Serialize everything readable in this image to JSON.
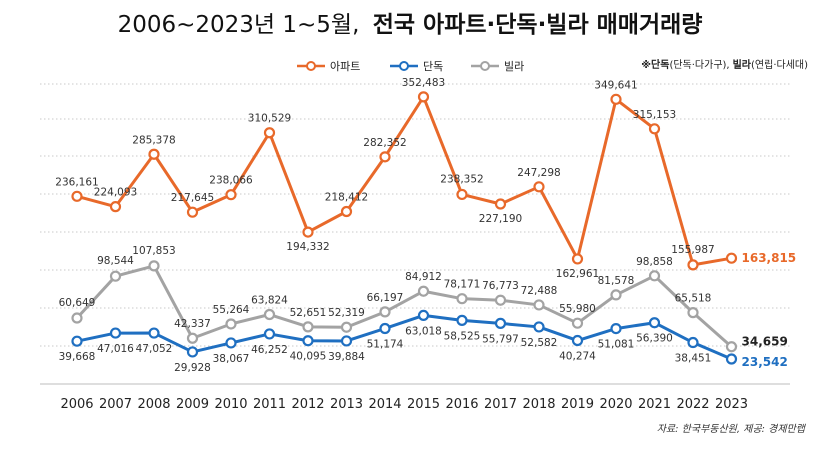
{
  "chart_data": {
    "type": "line",
    "title": "2006~2023년 1~5월, 전국 아파트·단독·빌라 매매거래량",
    "title_parts": {
      "regular": "2006~2023년 1~5월,",
      "bold": "전국 아파트·단독·빌라 매매거래량"
    },
    "x": [
      "2006",
      "2007",
      "2008",
      "2009",
      "2010",
      "2011",
      "2012",
      "2013",
      "2014",
      "2015",
      "2016",
      "2017",
      "2018",
      "2019",
      "2020",
      "2021",
      "2022",
      "2023"
    ],
    "series": [
      {
        "name": "아파트",
        "color": "#e8692a",
        "values": [
          236161,
          224093,
          285378,
          217645,
          238066,
          310529,
          194332,
          218412,
          282352,
          352483,
          238352,
          227190,
          247298,
          162961,
          349641,
          315153,
          155987,
          163815
        ],
        "labels": [
          "236,161",
          "224,093",
          "285,378",
          "217,645",
          "238,066",
          "310,529",
          "194,332",
          "218,412",
          "282,352",
          "352,483",
          "238,352",
          "227,190",
          "247,298",
          "162,961",
          "349,641",
          "315,153",
          "155,987",
          "163,815"
        ]
      },
      {
        "name": "단독",
        "color": "#1f6fc1",
        "values": [
          39668,
          47016,
          47052,
          29928,
          38067,
          46252,
          40095,
          39884,
          51174,
          63018,
          58525,
          55797,
          52582,
          40274,
          51081,
          56390,
          38451,
          23542
        ],
        "labels": [
          "39,668",
          "47,016",
          "47,052",
          "29,928",
          "38,067",
          "46,252",
          "40,095",
          "39,884",
          "51,174",
          "63,018",
          "58,525",
          "55,797",
          "52,582",
          "40,274",
          "51,081",
          "56,390",
          "38,451",
          "23,542"
        ]
      },
      {
        "name": "빌라",
        "color": "#a3a3a3",
        "values": [
          60649,
          98544,
          107853,
          42337,
          55264,
          63824,
          52651,
          52319,
          66197,
          84912,
          78171,
          76773,
          72488,
          55980,
          81578,
          98858,
          65518,
          34659
        ],
        "labels": [
          "60,649",
          "98,544",
          "107,853",
          "42,337",
          "55,264",
          "63,824",
          "52,651",
          "52,319",
          "66,197",
          "84,912",
          "78,171",
          "76,773",
          "72,488",
          "55,980",
          "81,578",
          "98,858",
          "65,518",
          "34,659"
        ]
      }
    ],
    "legend_note": {
      "prefix": "※",
      "danok_bold": "단독",
      "danok_paren": "(단독·다가구),",
      "villa_bold": "빌라",
      "villa_paren": "(연립·다세대)"
    },
    "source": "자료: 한국부동산원, 제공: 경제만랩",
    "legend_position": "top"
  }
}
